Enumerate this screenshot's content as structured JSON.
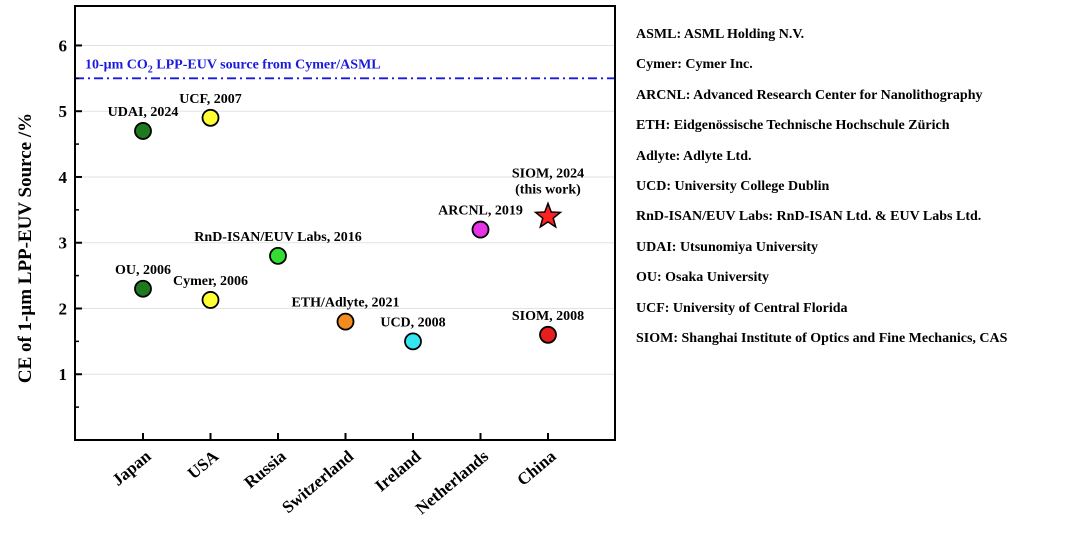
{
  "chart_data": {
    "type": "scatter",
    "title": "",
    "xlabel": "",
    "ylabel": "CE of 1-μm LPP-EUV Source /%",
    "ylim": [
      0,
      6.6
    ],
    "yticks": [
      1,
      2,
      3,
      4,
      5,
      6
    ],
    "grid": true,
    "categories": [
      "Japan",
      "USA",
      "Russia",
      "Switzerland",
      "Ireland",
      "Netherlands",
      "China"
    ],
    "reference_line": {
      "value": 5.5,
      "label_parts": [
        "10-μm CO",
        "2",
        " LPP-EUV source from Cymer/ASML"
      ],
      "color": "#1a1adc"
    },
    "points": [
      {
        "category": "Japan",
        "value": 4.7,
        "label": "UDAI, 2024",
        "color": "#1e7a1e",
        "marker": "circle"
      },
      {
        "category": "Japan",
        "value": 2.3,
        "label": "OU, 2006",
        "color": "#1e7a1e",
        "marker": "circle"
      },
      {
        "category": "USA",
        "value": 4.9,
        "label": "UCF, 2007",
        "color": "#ffff33",
        "marker": "circle"
      },
      {
        "category": "USA",
        "value": 2.13,
        "label": "Cymer, 2006",
        "color": "#ffff33",
        "marker": "circle"
      },
      {
        "category": "Russia",
        "value": 2.8,
        "label": "RnD-ISAN/EUV Labs, 2016",
        "color": "#33dd33",
        "marker": "circle"
      },
      {
        "category": "Switzerland",
        "value": 1.8,
        "label": "ETH/Adlyte, 2021",
        "color": "#f28c1e",
        "marker": "circle"
      },
      {
        "category": "Ireland",
        "value": 1.5,
        "label": "UCD, 2008",
        "color": "#33e6f0",
        "marker": "circle"
      },
      {
        "category": "Netherlands",
        "value": 3.2,
        "label": "ARCNL, 2019",
        "color": "#e633e6",
        "marker": "circle"
      },
      {
        "category": "China",
        "value": 1.6,
        "label": "SIOM, 2008",
        "color": "#e61e1e",
        "marker": "circle"
      },
      {
        "category": "China",
        "value": 3.4,
        "label": "SIOM, 2024",
        "label2": "(this work)",
        "color": "#ff2020",
        "marker": "star"
      }
    ]
  },
  "legend": {
    "items": [
      "ASML: ASML Holding N.V.",
      "Cymer: Cymer Inc.",
      "ARCNL: Advanced Research Center for Nanolithography",
      "ETH: Eidgenössische Technische Hochschule Zürich",
      "Adlyte: Adlyte Ltd.",
      "UCD: University College Dublin",
      "RnD-ISAN/EUV Labs: RnD-ISAN Ltd. & EUV Labs Ltd.",
      "UDAI: Utsunomiya University",
      "OU: Osaka University",
      "UCF: University of Central Florida",
      "SIOM: Shanghai Institute of Optics and Fine Mechanics, CAS"
    ]
  }
}
